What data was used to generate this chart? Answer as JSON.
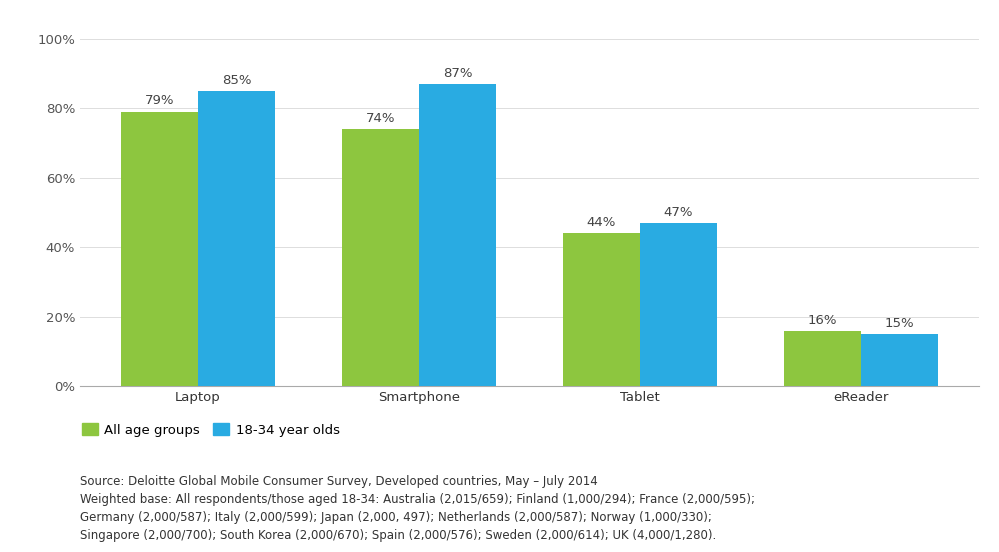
{
  "categories": [
    "Laptop",
    "Smartphone",
    "Tablet",
    "eReader"
  ],
  "all_age_groups": [
    79,
    74,
    44,
    16
  ],
  "young_age_group": [
    85,
    87,
    47,
    15
  ],
  "color_all": "#8DC63F",
  "color_young": "#29ABE2",
  "bar_width": 0.35,
  "ylim": [
    0,
    100
  ],
  "yticks": [
    0,
    20,
    40,
    60,
    80,
    100
  ],
  "ytick_labels": [
    "0%",
    "20%",
    "40%",
    "60%",
    "80%",
    "100%"
  ],
  "legend_labels": [
    "All age groups",
    "18-34 year olds"
  ],
  "footnote_line1": "Source: Deloitte Global Mobile Consumer Survey, Developed countries, May – July 2014",
  "footnote_line2": "Weighted base: All respondents/those aged 18-34: Australia (2,015/659); Finland (1,000/294); France (2,000/595);",
  "footnote_line3": "Germany (2,000/587); Italy (2,000/599); Japan (2,000, 497); Netherlands (2,000/587); Norway (1,000/330);",
  "footnote_line4": "Singapore (2,000/700); South Korea (2,000/670); Spain (2,000/576); Sweden (2,000/614); UK (4,000/1,280).",
  "background_color": "#FFFFFF",
  "label_fontsize": 9.5,
  "tick_fontsize": 9.5,
  "legend_fontsize": 9.5,
  "footnote_fontsize": 8.5
}
